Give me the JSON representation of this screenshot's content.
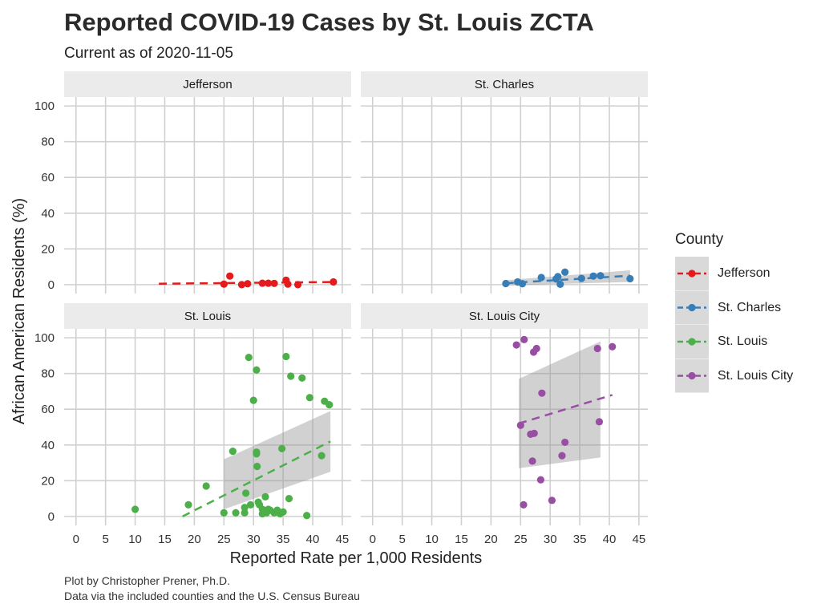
{
  "title": "Reported COVID-19 Cases by St. Louis ZCTA",
  "subtitle": "Current as of 2020-11-05",
  "caption_line1": "Plot by Christopher Prener, Ph.D.",
  "caption_line2": "Data via the included counties and the U.S. Census Bureau",
  "colors": {
    "Jefferson": "#e41a1c",
    "St. Charles": "#377eb8",
    "St. Louis": "#4daf4a",
    "St. Louis City": "#984ea3"
  },
  "legend": {
    "title": "County",
    "items": [
      "Jefferson",
      "St. Charles",
      "St. Louis",
      "St. Louis City"
    ]
  },
  "chart_data": {
    "type": "scatter",
    "xlabel": "Reported Rate per 1,000 Residents",
    "ylabel": "African American Residents (%)",
    "xlim": [
      -2,
      46.5
    ],
    "ylim": [
      -5,
      105
    ],
    "x_ticks": [
      0,
      5,
      10,
      15,
      20,
      25,
      30,
      35,
      40,
      45
    ],
    "y_ticks": [
      0,
      20,
      40,
      60,
      80,
      100
    ],
    "grid": true,
    "legend_position": "right",
    "panels": [
      {
        "name": "Jefferson",
        "points": [
          [
            25,
            0.3
          ],
          [
            26,
            4.8
          ],
          [
            28,
            0
          ],
          [
            29,
            0.5
          ],
          [
            31.5,
            0.8
          ],
          [
            32.5,
            0.8
          ],
          [
            33.5,
            0.7
          ],
          [
            35.5,
            2.5
          ],
          [
            35.8,
            0.3
          ],
          [
            37.5,
            0
          ],
          [
            43.5,
            1.5
          ]
        ],
        "trend": [
          [
            14,
            0.5
          ],
          [
            44,
            1.5
          ]
        ],
        "band": null
      },
      {
        "name": "St. Charles",
        "points": [
          [
            22.5,
            0.6
          ],
          [
            24.5,
            1.5
          ],
          [
            25.3,
            0.5
          ],
          [
            28.5,
            4
          ],
          [
            31,
            3.2
          ],
          [
            31.3,
            4.5
          ],
          [
            31.7,
            0.2
          ],
          [
            32.5,
            7
          ],
          [
            35.3,
            3.5
          ],
          [
            37.3,
            4.8
          ],
          [
            38.5,
            5
          ],
          [
            43.5,
            3.3
          ]
        ],
        "trend": [
          [
            22.5,
            0.8
          ],
          [
            43.5,
            5
          ]
        ],
        "band": {
          "x": [
            22.5,
            43.5
          ],
          "upper": [
            2.5,
            8
          ],
          "lower": [
            -0.5,
            1.5
          ]
        }
      },
      {
        "name": "St. Louis",
        "points": [
          [
            10,
            4
          ],
          [
            19,
            6.5
          ],
          [
            22,
            17
          ],
          [
            25,
            2
          ],
          [
            26.5,
            36.5
          ],
          [
            27,
            2
          ],
          [
            28.5,
            2
          ],
          [
            28.5,
            5
          ],
          [
            28.7,
            13
          ],
          [
            29.2,
            89
          ],
          [
            29.5,
            6.5
          ],
          [
            30,
            65
          ],
          [
            30.5,
            82
          ],
          [
            30.5,
            36
          ],
          [
            30.5,
            35
          ],
          [
            30.6,
            28
          ],
          [
            30.8,
            8
          ],
          [
            31,
            6.5
          ],
          [
            31.5,
            1.5
          ],
          [
            31.5,
            4
          ],
          [
            32,
            11
          ],
          [
            32.2,
            2
          ],
          [
            32.5,
            4
          ],
          [
            32.8,
            3.5
          ],
          [
            33.5,
            2
          ],
          [
            34,
            3.5
          ],
          [
            34.5,
            1.5
          ],
          [
            34.8,
            38
          ],
          [
            35,
            2.5
          ],
          [
            35.5,
            89.5
          ],
          [
            36,
            10
          ],
          [
            36.3,
            78.5
          ],
          [
            38.2,
            77.5
          ],
          [
            39,
            0.5
          ],
          [
            39.5,
            66.5
          ],
          [
            41.5,
            34
          ],
          [
            42,
            64.5
          ],
          [
            42.8,
            62.5
          ]
        ],
        "trend": [
          [
            18,
            0
          ],
          [
            43,
            42
          ]
        ],
        "band": {
          "x": [
            25,
            43
          ],
          "upper": [
            32,
            59
          ],
          "lower": [
            4,
            25
          ]
        }
      },
      {
        "name": "St. Louis City",
        "points": [
          [
            24.3,
            96
          ],
          [
            25,
            51
          ],
          [
            25.5,
            6.5
          ],
          [
            25.6,
            99
          ],
          [
            26.7,
            46
          ],
          [
            27,
            31
          ],
          [
            27.2,
            92
          ],
          [
            27.3,
            46.5
          ],
          [
            27.7,
            94
          ],
          [
            28.4,
            20.5
          ],
          [
            28.6,
            69
          ],
          [
            30.3,
            9
          ],
          [
            32,
            34
          ],
          [
            32.5,
            41.5
          ],
          [
            38,
            94
          ],
          [
            38.3,
            53
          ],
          [
            40.5,
            95
          ]
        ],
        "trend": [
          [
            24.7,
            52
          ],
          [
            40.5,
            68
          ]
        ],
        "band": {
          "x": [
            24.7,
            38.5
          ],
          "upper": [
            77,
            98
          ],
          "lower": [
            27,
            33
          ]
        }
      }
    ]
  }
}
